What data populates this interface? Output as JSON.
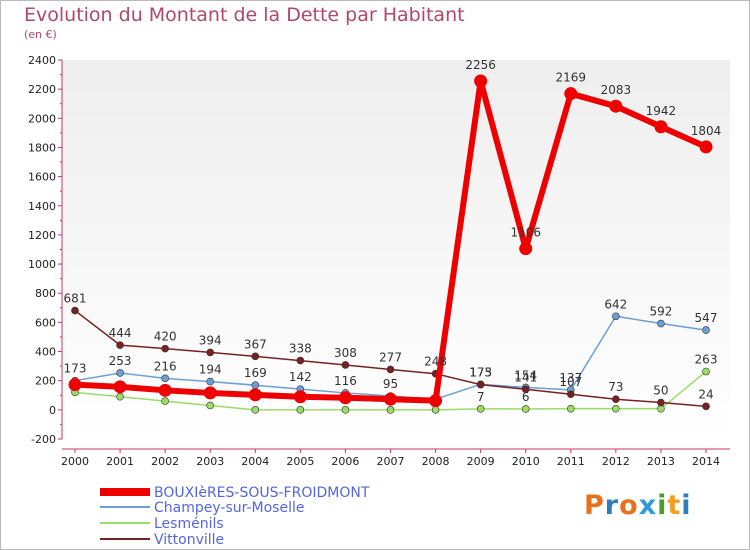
{
  "chart_data": {
    "type": "line",
    "title": "Evolution du Montant de la Dette par Habitant",
    "subtitle": "(en €)",
    "categories": [
      "2000",
      "2001",
      "2002",
      "2003",
      "2004",
      "2005",
      "2006",
      "2007",
      "2008",
      "2009",
      "2010",
      "2011",
      "2012",
      "2013",
      "2014"
    ],
    "ylim": [
      -200,
      2400
    ],
    "yticks": [
      -200,
      0,
      200,
      400,
      600,
      800,
      1000,
      1200,
      1400,
      1600,
      1800,
      2000,
      2200,
      2400
    ],
    "legend_position": "bottom",
    "series": [
      {
        "name": "BOUXIèRES-SOUS-FROIDMONT",
        "color": "#ee0000",
        "width": 6,
        "values": [
          173,
          158,
          134,
          116,
          103,
          90,
          83,
          73,
          63,
          2256,
          1106,
          2169,
          2083,
          1942,
          1804
        ],
        "labels": [
          "173",
          "",
          "",
          "",
          "",
          "",
          "",
          "",
          "",
          "2256",
          "1106",
          "2169",
          "2083",
          "1942",
          "1804"
        ]
      },
      {
        "name": "Champey-sur-Moselle",
        "color": "#6a9fd8",
        "width": 1.5,
        "values": [
          200,
          253,
          216,
          194,
          169,
          142,
          116,
          95,
          73,
          175,
          154,
          137,
          642,
          592,
          547
        ],
        "labels": [
          "",
          "253",
          "216",
          "194",
          "169",
          "142",
          "116",
          "95",
          "",
          "175",
          "154",
          "137",
          "642",
          "592",
          "547"
        ]
      },
      {
        "name": "Lesménils",
        "color": "#99dd66",
        "width": 1.5,
        "values": [
          120,
          90,
          60,
          30,
          0,
          0,
          0,
          0,
          0,
          7,
          6,
          8,
          8,
          8,
          263
        ],
        "labels": [
          "",
          "",
          "",
          "",
          "",
          "",
          "",
          "",
          "",
          "7",
          "6",
          "",
          "",
          "",
          "263"
        ]
      },
      {
        "name": "Vittonville",
        "color": "#772222",
        "width": 1.5,
        "values": [
          681,
          444,
          420,
          394,
          367,
          338,
          308,
          277,
          248,
          173,
          141,
          107,
          73,
          50,
          24
        ],
        "labels": [
          "681",
          "444",
          "420",
          "394",
          "367",
          "338",
          "308",
          "277",
          "248",
          "173",
          "141",
          "107",
          "73",
          "50",
          "24"
        ]
      }
    ]
  },
  "logo": {
    "text": "Proxiti",
    "letter_colors": [
      "#e8701a",
      "#2a7fc0",
      "#e8701a",
      "#3399dd",
      "#4a9e2a",
      "#f0a020",
      "#2a7fc0"
    ]
  }
}
